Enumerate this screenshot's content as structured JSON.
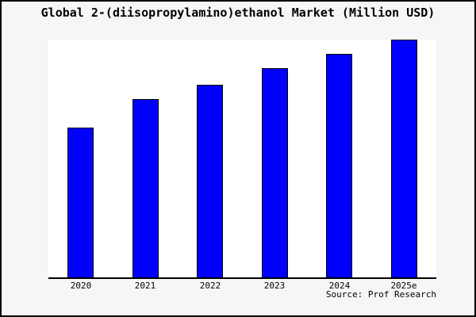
{
  "chart_data": {
    "type": "bar",
    "title": "Global 2-(diisopropylamino)ethanol Market (Million USD)",
    "categories": [
      "2020",
      "2021",
      "2022",
      "2023",
      "2024",
      "2025e"
    ],
    "values": [
      63,
      75,
      81,
      88,
      94,
      100
    ],
    "values_note": "no y-axis scale shown; values estimated as percent of tallest bar (2025e = 100)",
    "xlabel": "",
    "ylabel": "",
    "ylim": [
      0,
      100
    ],
    "grid": false,
    "legend": null,
    "source": "Source: Prof Research",
    "bar_color": "#0000ff",
    "bar_border_color": "#000000",
    "axis_color": "#000000",
    "plot_bg": "#ffffff",
    "fig_bg": "#f6f6f6",
    "frame_border_color": "#000000"
  }
}
